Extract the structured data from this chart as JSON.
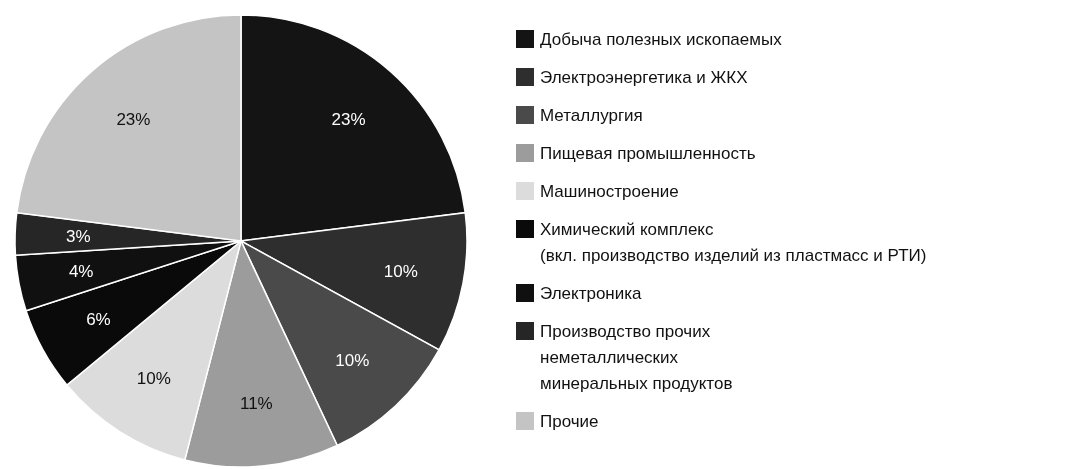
{
  "chart_data": {
    "type": "pie",
    "categories": [
      "Добыча полезных ископаемых",
      "Электроэнергетика и ЖКХ",
      "Металлургия",
      "Пищевая промышленность",
      "Машиностроение",
      "Химический комплекс\n(вкл. производство изделий из пластмасс и РТИ)",
      "Электроника",
      "Производство прочих\nнеметаллических\nминеральных продуктов",
      "Прочие"
    ],
    "values": [
      23,
      10,
      10,
      11,
      10,
      6,
      4,
      3,
      23
    ],
    "colors": [
      "#141414",
      "#2e2e2e",
      "#4a4a4a",
      "#9c9c9c",
      "#dcdcdc",
      "#0a0a0a",
      "#101010",
      "#262626",
      "#c4c4c4"
    ],
    "value_labels": [
      "23%",
      "10%",
      "10%",
      "11%",
      "10%",
      "6%",
      "4%",
      "3%",
      "23%"
    ],
    "legend": "right"
  }
}
